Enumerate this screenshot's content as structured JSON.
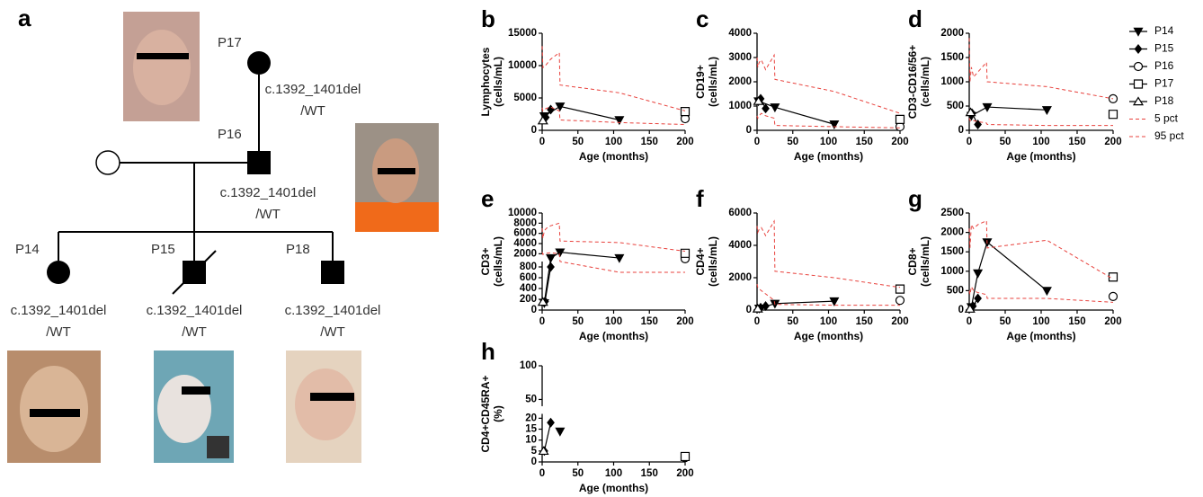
{
  "pedigree": {
    "label": "a",
    "individuals": [
      {
        "id": "P17",
        "genotype": [
          "c.1392_1401del",
          "/WT"
        ]
      },
      {
        "id": "P16",
        "genotype": [
          "c.1392_1401del",
          "/WT"
        ]
      },
      {
        "id": "P14",
        "genotype": [
          "c.1392_1401del",
          "/WT"
        ]
      },
      {
        "id": "P15",
        "genotype": [
          "c.1392_1401del",
          "/WT"
        ]
      },
      {
        "id": "P18",
        "genotype": [
          "c.1392_1401del",
          "/WT"
        ]
      }
    ]
  },
  "chart_data": [
    {
      "type": "line",
      "panel": "b",
      "ylabel": [
        "Lymphocytes",
        "(cells/mL)"
      ],
      "xlabel": "Age (months)",
      "xlim": [
        0,
        200
      ],
      "xticks": [
        0,
        50,
        100,
        150,
        200
      ],
      "ylim": [
        0,
        15000
      ],
      "yticks": [
        0,
        5000,
        10000,
        15000
      ],
      "series": [
        {
          "name": "P14",
          "marker": "triangle-down",
          "color": "#000000",
          "x": [
            3,
            25,
            108
          ],
          "values": [
            2200,
            3700,
            1600
          ]
        },
        {
          "name": "P15",
          "marker": "diamond",
          "color": "#000000",
          "x": [
            5,
            12
          ],
          "values": [
            2000,
            3200
          ]
        },
        {
          "name": "P16",
          "marker": "circle-open",
          "color": "#000000",
          "x": [
            200
          ],
          "values": [
            1800
          ]
        },
        {
          "name": "P17",
          "marker": "square-open",
          "color": "#000000",
          "x": [
            200
          ],
          "values": [
            2900
          ]
        },
        {
          "name": "P18",
          "marker": "triangle-open",
          "color": "#000000",
          "x": [
            1
          ],
          "values": [
            1500
          ]
        },
        {
          "name": "5 pct",
          "style": "dashed",
          "color": "#e8413c",
          "x": [
            0,
            1,
            3,
            6,
            12,
            24,
            25,
            108,
            200
          ],
          "values": [
            3500,
            3000,
            3200,
            3400,
            3600,
            3000,
            1600,
            1200,
            900
          ]
        },
        {
          "name": "95 pct",
          "style": "dashed",
          "color": "#e8413c",
          "x": [
            0,
            1,
            3,
            6,
            12,
            24,
            25,
            108,
            200
          ],
          "values": [
            13000,
            9700,
            9800,
            10200,
            11000,
            12000,
            7000,
            5800,
            3000
          ]
        }
      ]
    },
    {
      "type": "line",
      "panel": "c",
      "ylabel": [
        "CD19+",
        "(cells/mL)"
      ],
      "xlabel": "Age (months)",
      "xlim": [
        0,
        200
      ],
      "xticks": [
        0,
        50,
        100,
        150,
        200
      ],
      "ylim": [
        0,
        4000
      ],
      "yticks": [
        0,
        1000,
        2000,
        3000,
        4000
      ],
      "series": [
        {
          "name": "P14",
          "marker": "triangle-down",
          "color": "#000000",
          "x": [
            2,
            25,
            108
          ],
          "values": [
            1200,
            950,
            250
          ]
        },
        {
          "name": "P15",
          "marker": "diamond",
          "color": "#000000",
          "x": [
            5,
            12
          ],
          "values": [
            1300,
            900
          ]
        },
        {
          "name": "P16",
          "marker": "circle-open",
          "color": "#000000",
          "x": [
            200
          ],
          "values": [
            150
          ]
        },
        {
          "name": "P17",
          "marker": "square-open",
          "color": "#000000",
          "x": [
            200
          ],
          "values": [
            450
          ]
        },
        {
          "name": "P18",
          "marker": "triangle-open",
          "color": "#000000",
          "x": [
            2
          ],
          "values": [
            1200
          ]
        },
        {
          "name": "5 pct",
          "style": "dashed",
          "color": "#e8413c",
          "x": [
            0,
            1,
            3,
            6,
            12,
            24,
            25,
            108,
            200
          ],
          "values": [
            600,
            500,
            600,
            700,
            600,
            500,
            200,
            150,
            100
          ]
        },
        {
          "name": "95 pct",
          "style": "dashed",
          "color": "#e8413c",
          "x": [
            0,
            1,
            3,
            6,
            12,
            24,
            25,
            108,
            200
          ],
          "values": [
            3000,
            2600,
            2800,
            2900,
            2500,
            3100,
            2100,
            1600,
            700
          ]
        }
      ]
    },
    {
      "type": "line",
      "panel": "d",
      "ylabel": [
        "CD3-CD16/56+",
        "(cells/mL)"
      ],
      "xlabel": "Age (months)",
      "xlim": [
        0,
        200
      ],
      "xticks": [
        0,
        50,
        100,
        150,
        200
      ],
      "ylim": [
        0,
        2000
      ],
      "yticks": [
        0,
        500,
        1000,
        1500,
        2000
      ],
      "series": [
        {
          "name": "P14",
          "marker": "triangle-down",
          "color": "#000000",
          "x": [
            3,
            25,
            108
          ],
          "values": [
            300,
            480,
            420
          ]
        },
        {
          "name": "P15",
          "marker": "diamond",
          "color": "#000000",
          "x": [
            4,
            12
          ],
          "values": [
            350,
            120
          ]
        },
        {
          "name": "P16",
          "marker": "circle-open",
          "color": "#000000",
          "x": [
            200
          ],
          "values": [
            650
          ]
        },
        {
          "name": "P17",
          "marker": "square-open",
          "color": "#000000",
          "x": [
            200
          ],
          "values": [
            330
          ]
        },
        {
          "name": "P18",
          "marker": "triangle-open",
          "color": "#000000",
          "x": [
            2
          ],
          "values": [
            370
          ]
        },
        {
          "name": "5 pct",
          "style": "dashed",
          "color": "#e8413c",
          "x": [
            0,
            1,
            3,
            6,
            12,
            24,
            25,
            108,
            200
          ],
          "values": [
            250,
            200,
            180,
            200,
            180,
            150,
            120,
            100,
            100
          ]
        },
        {
          "name": "95 pct",
          "style": "dashed",
          "color": "#e8413c",
          "x": [
            0,
            1,
            3,
            6,
            12,
            24,
            25,
            108,
            200
          ],
          "values": [
            1900,
            1000,
            1300,
            1100,
            1200,
            1400,
            1000,
            900,
            650
          ]
        }
      ]
    },
    {
      "type": "line",
      "panel": "e",
      "ylabel": [
        "CD3+",
        "(cells/mL)"
      ],
      "xlabel": "Age (months)",
      "xlim": [
        0,
        200
      ],
      "xticks": [
        0,
        50,
        100,
        150,
        200
      ],
      "ylim": [
        0,
        10000
      ],
      "ybreak": [
        900,
        2000
      ],
      "yticks": [
        0,
        200,
        400,
        600,
        800,
        2000,
        4000,
        6000,
        8000,
        10000
      ],
      "series": [
        {
          "name": "P14",
          "marker": "triangle-down",
          "color": "#000000",
          "x": [
            3,
            12,
            25,
            108
          ],
          "values": [
            130,
            1400,
            2300,
            1400
          ]
        },
        {
          "name": "P15",
          "marker": "diamond",
          "color": "#000000",
          "x": [
            4,
            12
          ],
          "values": [
            160,
            800
          ]
        },
        {
          "name": "P16",
          "marker": "circle-open",
          "color": "#000000",
          "x": [
            200
          ],
          "values": [
            1300
          ]
        },
        {
          "name": "P17",
          "marker": "square-open",
          "color": "#000000",
          "x": [
            200
          ],
          "values": [
            2100
          ]
        },
        {
          "name": "P18",
          "marker": "triangle-open",
          "color": "#000000",
          "x": [
            1
          ],
          "values": [
            150
          ]
        },
        {
          "name": "5 pct",
          "style": "dashed",
          "color": "#e8413c",
          "x": [
            0,
            1,
            3,
            6,
            12,
            24,
            25,
            108,
            200
          ],
          "values": [
            2300,
            1900,
            2000,
            2100,
            2200,
            2000,
            900,
            700,
            700
          ]
        },
        {
          "name": "95 pct",
          "style": "dashed",
          "color": "#e8413c",
          "x": [
            0,
            1,
            3,
            6,
            12,
            24,
            25,
            108,
            200
          ],
          "values": [
            7000,
            5000,
            6500,
            7000,
            7500,
            8000,
            4500,
            4200,
            2500
          ]
        }
      ]
    },
    {
      "type": "line",
      "panel": "f",
      "ylabel": [
        "CD4+",
        "(cells/mL)"
      ],
      "xlabel": "Age (months)",
      "xlim": [
        0,
        200
      ],
      "xticks": [
        0,
        50,
        100,
        150,
        200
      ],
      "ylim": [
        0,
        6000
      ],
      "yticks": [
        0,
        2000,
        4000,
        6000
      ],
      "series": [
        {
          "name": "P14",
          "marker": "triangle-down",
          "color": "#000000",
          "x": [
            3,
            25,
            108
          ],
          "values": [
            100,
            400,
            550
          ]
        },
        {
          "name": "P15",
          "marker": "diamond",
          "color": "#000000",
          "x": [
            5,
            12
          ],
          "values": [
            150,
            250
          ]
        },
        {
          "name": "P16",
          "marker": "circle-open",
          "color": "#000000",
          "x": [
            200
          ],
          "values": [
            600
          ]
        },
        {
          "name": "P17",
          "marker": "square-open",
          "color": "#000000",
          "x": [
            200
          ],
          "values": [
            1300
          ]
        },
        {
          "name": "P18",
          "marker": "triangle-open",
          "color": "#000000",
          "x": [
            1
          ],
          "values": [
            80
          ]
        },
        {
          "name": "5 pct",
          "style": "dashed",
          "color": "#e8413c",
          "x": [
            0,
            1,
            3,
            6,
            12,
            24,
            25,
            108,
            200
          ],
          "values": [
            1600,
            1400,
            1300,
            1200,
            1000,
            600,
            350,
            300,
            300
          ]
        },
        {
          "name": "95 pct",
          "style": "dashed",
          "color": "#e8413c",
          "x": [
            0,
            1,
            3,
            6,
            12,
            24,
            25,
            108,
            200
          ],
          "values": [
            5200,
            4800,
            5000,
            5100,
            4600,
            5500,
            2400,
            2000,
            1400
          ]
        }
      ]
    },
    {
      "type": "line",
      "panel": "g",
      "ylabel": [
        "CD8+",
        "(cells/mL)"
      ],
      "xlabel": "Age (months)",
      "xlim": [
        0,
        200
      ],
      "xticks": [
        0,
        50,
        100,
        150,
        200
      ],
      "ylim": [
        0,
        2500
      ],
      "yticks": [
        0,
        500,
        1000,
        1500,
        2000,
        2500
      ],
      "series": [
        {
          "name": "P14",
          "marker": "triangle-down",
          "color": "#000000",
          "x": [
            3,
            12,
            25,
            108
          ],
          "values": [
            80,
            950,
            1750,
            500
          ]
        },
        {
          "name": "P15",
          "marker": "diamond",
          "color": "#000000",
          "x": [
            5,
            12
          ],
          "values": [
            100,
            300
          ]
        },
        {
          "name": "P16",
          "marker": "circle-open",
          "color": "#000000",
          "x": [
            200
          ],
          "values": [
            350
          ]
        },
        {
          "name": "P17",
          "marker": "square-open",
          "color": "#000000",
          "x": [
            200
          ],
          "values": [
            850
          ]
        },
        {
          "name": "P18",
          "marker": "triangle-open",
          "color": "#000000",
          "x": [
            1
          ],
          "values": [
            30
          ]
        },
        {
          "name": "5 pct",
          "style": "dashed",
          "color": "#e8413c",
          "x": [
            0,
            1,
            3,
            6,
            12,
            24,
            25,
            108,
            200
          ],
          "values": [
            500,
            400,
            600,
            500,
            450,
            400,
            300,
            300,
            200
          ]
        },
        {
          "name": "95 pct",
          "style": "dashed",
          "color": "#e8413c",
          "x": [
            0,
            1,
            3,
            6,
            12,
            24,
            25,
            108,
            200
          ],
          "values": [
            2100,
            1600,
            2200,
            2100,
            2200,
            2300,
            1600,
            1800,
            800
          ]
        }
      ]
    },
    {
      "type": "line",
      "panel": "h",
      "ylabel": [
        "CD4+CD45RA+",
        "(%)"
      ],
      "xlabel": "Age (months)",
      "xlim": [
        0,
        200
      ],
      "xticks": [
        0,
        50,
        100,
        150,
        200
      ],
      "ylim": [
        0,
        100
      ],
      "ybreak": [
        22,
        40
      ],
      "yticks": [
        0,
        5,
        10,
        15,
        20,
        50,
        100
      ],
      "series": [
        {
          "name": "P14",
          "marker": "triangle-down",
          "color": "#000000",
          "x": [
            25
          ],
          "values": [
            14
          ]
        },
        {
          "name": "P15",
          "marker": "diamond",
          "color": "#000000",
          "x": [
            3,
            12
          ],
          "values": [
            5,
            18
          ]
        },
        {
          "name": "P16",
          "marker": "circle-open",
          "color": "#000000",
          "x": [
            200
          ],
          "values": [
            2
          ]
        },
        {
          "name": "P17",
          "marker": "square-open",
          "color": "#000000",
          "x": [
            200
          ],
          "values": [
            2.5
          ]
        },
        {
          "name": "P18",
          "marker": "triangle-open",
          "color": "#000000",
          "x": [
            2
          ],
          "values": [
            5
          ]
        }
      ]
    }
  ]
}
